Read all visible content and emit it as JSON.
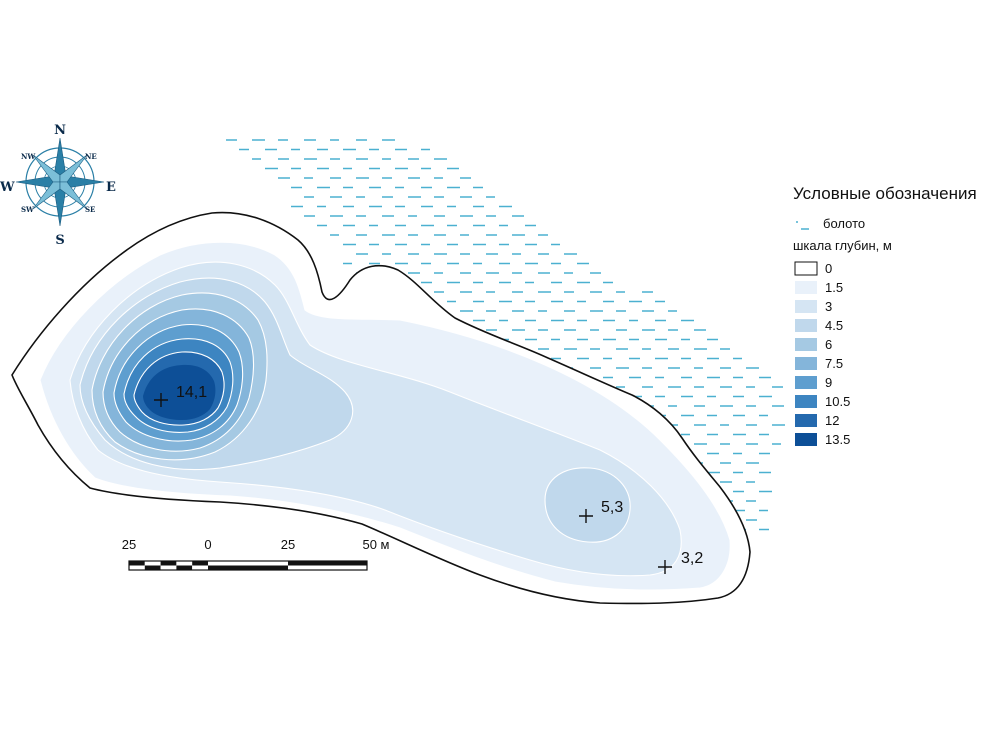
{
  "compass": {
    "n": "N",
    "s": "S",
    "e": "E",
    "w": "W",
    "ne": "NE",
    "nw": "NW",
    "se": "SE",
    "sw": "SW",
    "icon": "compass-rose-icon",
    "color": "#2a7fa6"
  },
  "legend": {
    "title": "Условные обозначения",
    "swamp_label": "болото",
    "scale_label": "шкала глубин, м",
    "classes": [
      {
        "label": "0",
        "color": "#ffffff"
      },
      {
        "label": "1.5",
        "color": "#e9f1fa"
      },
      {
        "label": "3",
        "color": "#d5e5f3"
      },
      {
        "label": "4.5",
        "color": "#c0d8ec"
      },
      {
        "label": "6",
        "color": "#a5c9e3"
      },
      {
        "label": "7.5",
        "color": "#84b5da"
      },
      {
        "label": "9",
        "color": "#5e9ecf"
      },
      {
        "label": "10.5",
        "color": "#3d85c1"
      },
      {
        "label": "12",
        "color": "#2469ae"
      },
      {
        "label": "13.5",
        "color": "#0d4f97"
      }
    ]
  },
  "depth_points": [
    {
      "label": "14,1"
    },
    {
      "label": "5,3"
    },
    {
      "label": "3,2"
    }
  ],
  "scale_bar": {
    "ticks": [
      "25",
      "0",
      "25",
      "50 м"
    ]
  },
  "swamp_color": "#4bb0d0"
}
